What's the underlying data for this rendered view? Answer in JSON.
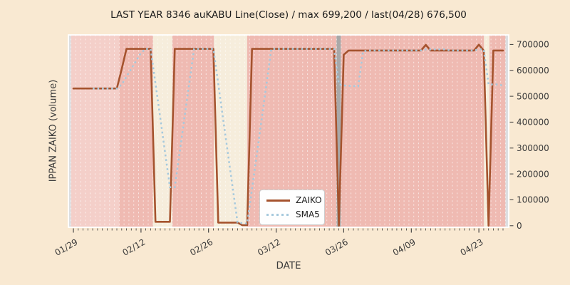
{
  "title": "LAST YEAR 8346 auKABU Line(Close) / max 699,200 / last(04/28) 676,500",
  "x_axis": {
    "label": "DATE",
    "major_tick_labels": [
      "01/29",
      "02/12",
      "02/26",
      "03/12",
      "03/26",
      "04/09",
      "04/23"
    ]
  },
  "y_axis": {
    "label": "IPPAN ZAIKO (volume)",
    "side": "right",
    "ticks": [
      0,
      100000,
      200000,
      300000,
      400000,
      500000,
      600000,
      700000
    ]
  },
  "legend": {
    "items": [
      {
        "label": "ZAIKO",
        "style": "solid"
      },
      {
        "label": "SMA5",
        "style": "dotted"
      }
    ],
    "position": "lower-center-left"
  },
  "colors": {
    "figure_bg": "#f9e9d2",
    "plot_bg": "#dcdfe2",
    "band_light_pink": "#f4cfc9",
    "band_pink": "#efbab2",
    "band_cream": "#f6eddc",
    "band_gray": "#a8a8a8",
    "grid_line": "#ffffff",
    "spine": "#ffffff",
    "zaiko_line": "#a5532e",
    "sma5_line": "#a6c9dd",
    "text": "#3a3a3a",
    "title_text": "#1c1c1c"
  },
  "chart_data": {
    "type": "line",
    "title": "LAST YEAR 8346 auKABU Line(Close) / max 699,200 / last(04/28) 676,500",
    "xlabel": "DATE",
    "ylabel": "IPPAN ZAIKO (volume)",
    "max_annotated": 699200,
    "last_annotated": {
      "date": "04/28",
      "value": 676500
    },
    "grid": "vertical-daily-white-dashed",
    "ylim": [
      -6000,
      737000
    ],
    "x_major_indices": [
      0,
      14,
      28,
      42,
      56,
      70,
      84
    ],
    "x": [
      "01/29",
      "01/30",
      "01/31",
      "02/01",
      "02/02",
      "02/03",
      "02/04",
      "02/05",
      "02/06",
      "02/07",
      "02/08",
      "02/09",
      "02/10",
      "02/11",
      "02/12",
      "02/13",
      "02/14",
      "02/15",
      "02/16",
      "02/17",
      "02/18",
      "02/19",
      "02/20",
      "02/21",
      "02/22",
      "02/23",
      "02/24",
      "02/25",
      "02/26",
      "02/27",
      "02/28",
      "03/01",
      "03/02",
      "03/03",
      "03/04",
      "03/05",
      "03/06",
      "03/07",
      "03/08",
      "03/09",
      "03/10",
      "03/11",
      "03/12",
      "03/13",
      "03/14",
      "03/15",
      "03/16",
      "03/17",
      "03/18",
      "03/19",
      "03/20",
      "03/21",
      "03/22",
      "03/23",
      "03/24",
      "03/25",
      "03/26",
      "03/27",
      "03/28",
      "03/29",
      "03/30",
      "03/31",
      "04/01",
      "04/02",
      "04/03",
      "04/04",
      "04/05",
      "04/06",
      "04/07",
      "04/08",
      "04/09",
      "04/10",
      "04/11",
      "04/12",
      "04/13",
      "04/14",
      "04/15",
      "04/16",
      "04/17",
      "04/18",
      "04/19",
      "04/20",
      "04/21",
      "04/22",
      "04/23",
      "04/24",
      "04/25",
      "04/26",
      "04/27",
      "04/28"
    ],
    "series": [
      {
        "name": "ZAIKO",
        "values": [
          530000,
          530000,
          530000,
          530000,
          530000,
          530000,
          530000,
          530000,
          530000,
          530000,
          605000,
          683000,
          683000,
          683000,
          683000,
          683000,
          683000,
          15000,
          15000,
          15000,
          15000,
          683000,
          683000,
          683000,
          683000,
          683000,
          683000,
          683000,
          683000,
          683000,
          12000,
          12000,
          12000,
          12000,
          12000,
          2000,
          2000,
          683000,
          683000,
          683000,
          683000,
          683000,
          683000,
          683000,
          683000,
          683000,
          683000,
          683000,
          683000,
          683000,
          683000,
          683000,
          683000,
          683000,
          683000,
          0,
          660000,
          676500,
          676500,
          676500,
          676500,
          676500,
          676500,
          676500,
          676500,
          676500,
          676500,
          676500,
          676500,
          676500,
          676500,
          676500,
          676500,
          698300,
          676500,
          676500,
          676500,
          676500,
          676500,
          676500,
          676500,
          676500,
          676500,
          676500,
          699200,
          676500,
          0,
          676500,
          676500,
          676500
        ]
      },
      {
        "name": "SMA5",
        "values": [
          null,
          null,
          null,
          null,
          530000,
          530000,
          530000,
          530000,
          530000,
          530000,
          545000,
          575600,
          606200,
          636800,
          667400,
          683000,
          683000,
          549400,
          415800,
          282200,
          148600,
          148600,
          282200,
          415800,
          549400,
          683000,
          683000,
          683000,
          683000,
          683000,
          548800,
          414600,
          280400,
          146200,
          12000,
          10000,
          8000,
          142200,
          276400,
          410600,
          546800,
          683000,
          683000,
          683000,
          683000,
          683000,
          683000,
          683000,
          683000,
          683000,
          683000,
          683000,
          683000,
          683000,
          683000,
          546400,
          541800,
          540500,
          539200,
          537900,
          673200,
          676500,
          676500,
          676500,
          676500,
          676500,
          676500,
          676500,
          676500,
          676500,
          676500,
          676500,
          676500,
          680860,
          680860,
          680860,
          680860,
          680860,
          676500,
          676500,
          676500,
          676500,
          676500,
          676500,
          681040,
          681040,
          545740,
          545740,
          545740,
          541200
        ]
      }
    ],
    "background_bands": [
      {
        "from": -0.5,
        "to": 9.5,
        "color": "band_light_pink"
      },
      {
        "from": 9.5,
        "to": 16.5,
        "color": "band_pink"
      },
      {
        "from": 16.5,
        "to": 20.5,
        "color": "band_cream"
      },
      {
        "from": 20.5,
        "to": 29.1,
        "color": "band_pink"
      },
      {
        "from": 29.1,
        "to": 36.0,
        "color": "band_cream"
      },
      {
        "from": 36.0,
        "to": 54.5,
        "color": "band_pink"
      },
      {
        "from": 54.5,
        "to": 55.4,
        "color": "band_gray"
      },
      {
        "from": 55.4,
        "to": 85.05,
        "color": "band_pink"
      },
      {
        "from": 85.05,
        "to": 86.2,
        "color": "band_cream"
      },
      {
        "from": 86.2,
        "to": 89.5,
        "color": "band_pink"
      }
    ]
  }
}
